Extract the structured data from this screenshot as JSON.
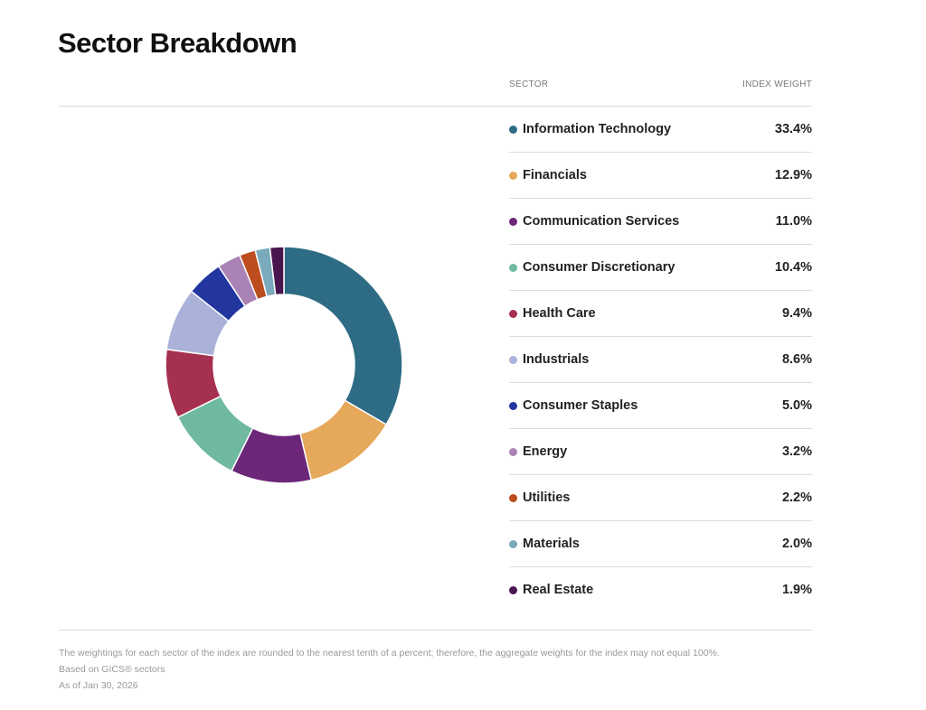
{
  "title": "Sector Breakdown",
  "table": {
    "col_sector": "SECTOR",
    "col_weight": "INDEX WEIGHT"
  },
  "chart_data": {
    "type": "pie",
    "variant": "donut",
    "title": "Sector Breakdown",
    "categories": [
      "Information Technology",
      "Financials",
      "Communication Services",
      "Consumer Discretionary",
      "Health Care",
      "Industrials",
      "Consumer Staples",
      "Energy",
      "Utilities",
      "Materials",
      "Real Estate"
    ],
    "values": [
      33.4,
      12.9,
      11.0,
      10.4,
      9.4,
      8.6,
      5.0,
      3.2,
      2.2,
      2.0,
      1.9
    ],
    "labels": [
      "33.4%",
      "12.9%",
      "11.0%",
      "10.4%",
      "9.4%",
      "8.6%",
      "5.0%",
      "3.2%",
      "2.2%",
      "2.0%",
      "1.9%"
    ],
    "colors": [
      "#2e6c85",
      "#e6a85a",
      "#6c2779",
      "#6fb9a0",
      "#a6304f",
      "#aab2da",
      "#2336a0",
      "#a983b5",
      "#bb4d1f",
      "#7aaabb",
      "#4a1650"
    ],
    "legend": "right"
  },
  "notes": [
    "The weightings for each sector of the index are rounded to the nearest tenth of a percent; therefore, the aggregate weights for the index may not equal 100%.",
    "Based on GICS® sectors",
    "As of Jan 30, 2026"
  ]
}
